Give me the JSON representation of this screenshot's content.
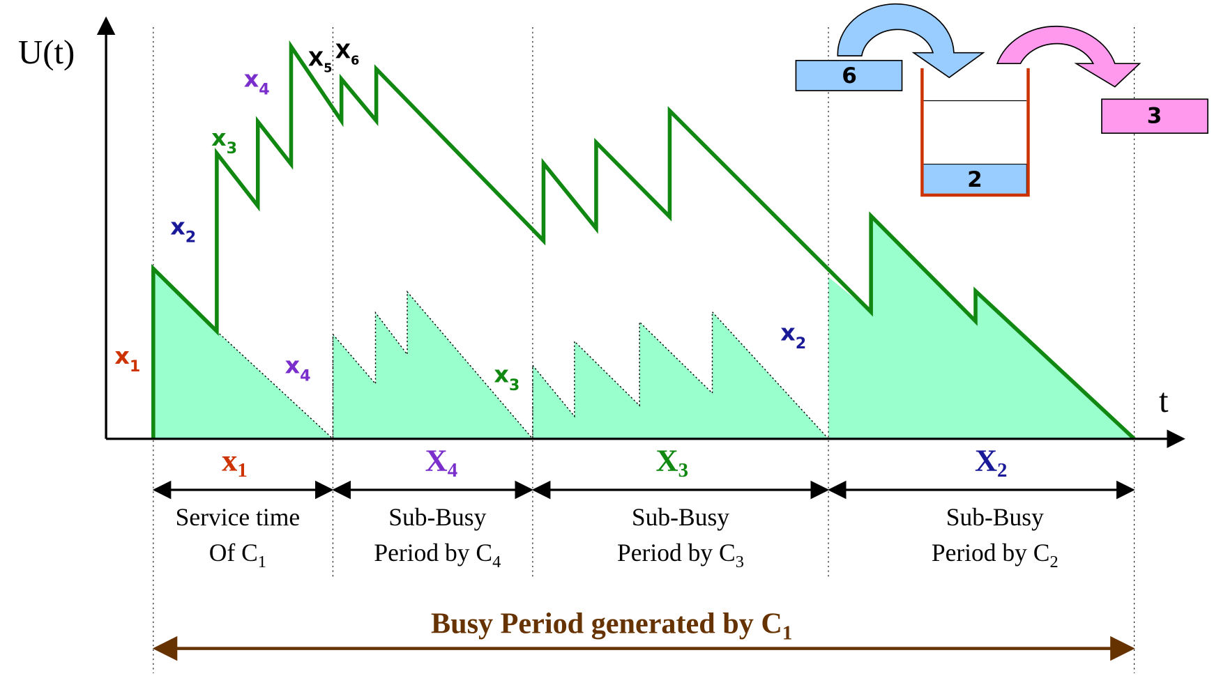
{
  "axes": {
    "y_label": "U(t)",
    "x_label": "t"
  },
  "arrival_labels": [
    {
      "base": "x",
      "sub": "1"
    },
    {
      "base": "x",
      "sub": "2"
    },
    {
      "base": "x",
      "sub": "3"
    },
    {
      "base": "x",
      "sub": "4"
    },
    {
      "base": "X",
      "sub": "5"
    },
    {
      "base": "X",
      "sub": "6"
    },
    {
      "base": "x",
      "sub": "4"
    },
    {
      "base": "x",
      "sub": "3"
    },
    {
      "base": "x",
      "sub": "2"
    }
  ],
  "period_labels": [
    {
      "base": "x",
      "sub": "1"
    },
    {
      "base": "X",
      "sub": "4"
    },
    {
      "base": "X",
      "sub": "3"
    },
    {
      "base": "X",
      "sub": "2"
    }
  ],
  "periods": [
    {
      "line1": "Service time",
      "line2": "Of C",
      "sub": "1"
    },
    {
      "line1": "Sub-Busy",
      "line2": "Period by C",
      "sub": "4"
    },
    {
      "line1": "Sub-Busy",
      "line2": "Period by C",
      "sub": "3"
    },
    {
      "line1": "Sub-Busy",
      "line2": "Period by C",
      "sub": "2"
    }
  ],
  "busy_period": {
    "text": "Busy Period generated by C",
    "sub": "1"
  },
  "queue": {
    "incoming": "6",
    "in_queue": "2",
    "in_service": "3"
  }
}
